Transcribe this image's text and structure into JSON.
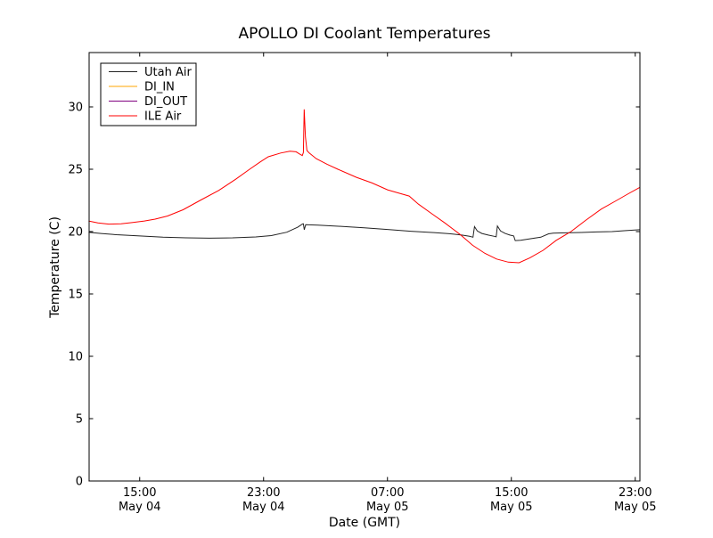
{
  "title": "APOLLO DI Coolant Temperatures",
  "chart_data": {
    "type": "line",
    "title": "APOLLO DI Coolant Temperatures",
    "xlabel": "Date (GMT)",
    "ylabel": "Temperature (C)",
    "ylim": [
      0,
      34.4
    ],
    "xlim_hours_since_may04_0000": [
      11.7,
      47.3
    ],
    "grid": false,
    "legend_position": "upper left",
    "frame_color": "#000000",
    "x_ticks": [
      {
        "t": 15,
        "time": "15:00",
        "date": "May 04"
      },
      {
        "t": 23,
        "time": "23:00",
        "date": "May 04"
      },
      {
        "t": 31,
        "time": "07:00",
        "date": "May 05"
      },
      {
        "t": 39,
        "time": "15:00",
        "date": "May 05"
      },
      {
        "t": 47,
        "time": "23:00",
        "date": "May 05"
      }
    ],
    "y_ticks": [
      0,
      5,
      10,
      15,
      20,
      25,
      30
    ],
    "series": [
      {
        "name": "Utah Air",
        "color": "#222222",
        "points": [
          [
            11.7,
            19.95
          ],
          [
            12.5,
            19.85
          ],
          [
            13.5,
            19.75
          ],
          [
            15,
            19.65
          ],
          [
            16.5,
            19.55
          ],
          [
            18,
            19.5
          ],
          [
            19.5,
            19.47
          ],
          [
            21,
            19.5
          ],
          [
            22.5,
            19.57
          ],
          [
            23.5,
            19.68
          ],
          [
            24.5,
            19.95
          ],
          [
            25.2,
            20.35
          ],
          [
            25.5,
            20.6
          ],
          [
            25.57,
            20.62
          ],
          [
            25.63,
            20.15
          ],
          [
            25.72,
            20.55
          ],
          [
            26.5,
            20.52
          ],
          [
            28,
            20.42
          ],
          [
            29.5,
            20.3
          ],
          [
            31,
            20.17
          ],
          [
            32.5,
            20.03
          ],
          [
            34,
            19.92
          ],
          [
            35,
            19.83
          ],
          [
            35.8,
            19.72
          ],
          [
            36.3,
            19.62
          ],
          [
            36.52,
            19.55
          ],
          [
            36.62,
            20.4
          ],
          [
            36.8,
            20.05
          ],
          [
            37.1,
            19.85
          ],
          [
            37.5,
            19.72
          ],
          [
            37.9,
            19.62
          ],
          [
            38.02,
            19.58
          ],
          [
            38.1,
            20.45
          ],
          [
            38.3,
            20.05
          ],
          [
            38.6,
            19.85
          ],
          [
            38.9,
            19.72
          ],
          [
            39.15,
            19.65
          ],
          [
            39.25,
            19.28
          ],
          [
            39.6,
            19.3
          ],
          [
            40.2,
            19.42
          ],
          [
            40.9,
            19.55
          ],
          [
            41.4,
            19.82
          ],
          [
            41.7,
            19.87
          ],
          [
            42.5,
            19.9
          ],
          [
            43.5,
            19.93
          ],
          [
            44.5,
            19.97
          ],
          [
            45.5,
            20.0
          ],
          [
            46.3,
            20.07
          ],
          [
            47.3,
            20.15
          ]
        ]
      },
      {
        "name": "DI_IN",
        "color": "#ffa500",
        "points": [
          [
            11.7,
            0
          ],
          [
            47.3,
            0
          ]
        ]
      },
      {
        "name": "DI_OUT",
        "color": "#800080",
        "points": [
          [
            11.7,
            0
          ],
          [
            47.3,
            0
          ]
        ]
      },
      {
        "name": "ILE Air",
        "color": "#ff0000",
        "points": [
          [
            11.7,
            20.85
          ],
          [
            12.3,
            20.7
          ],
          [
            13,
            20.6
          ],
          [
            13.8,
            20.62
          ],
          [
            14.5,
            20.72
          ],
          [
            15.3,
            20.85
          ],
          [
            16,
            21.0
          ],
          [
            16.8,
            21.25
          ],
          [
            17.8,
            21.75
          ],
          [
            18.9,
            22.5
          ],
          [
            20.1,
            23.3
          ],
          [
            21.2,
            24.2
          ],
          [
            22.1,
            25.0
          ],
          [
            22.8,
            25.6
          ],
          [
            23.3,
            26.0
          ],
          [
            24.1,
            26.3
          ],
          [
            24.7,
            26.45
          ],
          [
            25.1,
            26.4
          ],
          [
            25.35,
            26.2
          ],
          [
            25.5,
            26.1
          ],
          [
            25.57,
            26.35
          ],
          [
            25.62,
            29.8
          ],
          [
            25.7,
            27.6
          ],
          [
            25.8,
            26.5
          ],
          [
            25.95,
            26.3
          ],
          [
            26.4,
            25.85
          ],
          [
            27.1,
            25.4
          ],
          [
            27.8,
            25.0
          ],
          [
            29,
            24.35
          ],
          [
            30,
            23.9
          ],
          [
            31,
            23.35
          ],
          [
            31.7,
            23.1
          ],
          [
            32.4,
            22.85
          ],
          [
            33,
            22.2
          ],
          [
            33.9,
            21.4
          ],
          [
            34.7,
            20.7
          ],
          [
            35.66,
            19.8
          ],
          [
            36.5,
            18.9
          ],
          [
            37.3,
            18.25
          ],
          [
            38.05,
            17.8
          ],
          [
            38.8,
            17.55
          ],
          [
            39.5,
            17.5
          ],
          [
            40.2,
            17.9
          ],
          [
            41.05,
            18.5
          ],
          [
            41.9,
            19.3
          ],
          [
            42.85,
            20.0
          ],
          [
            43.8,
            20.9
          ],
          [
            44.8,
            21.8
          ],
          [
            45.8,
            22.5
          ],
          [
            46.5,
            23.0
          ],
          [
            47.3,
            23.55
          ]
        ]
      }
    ]
  }
}
